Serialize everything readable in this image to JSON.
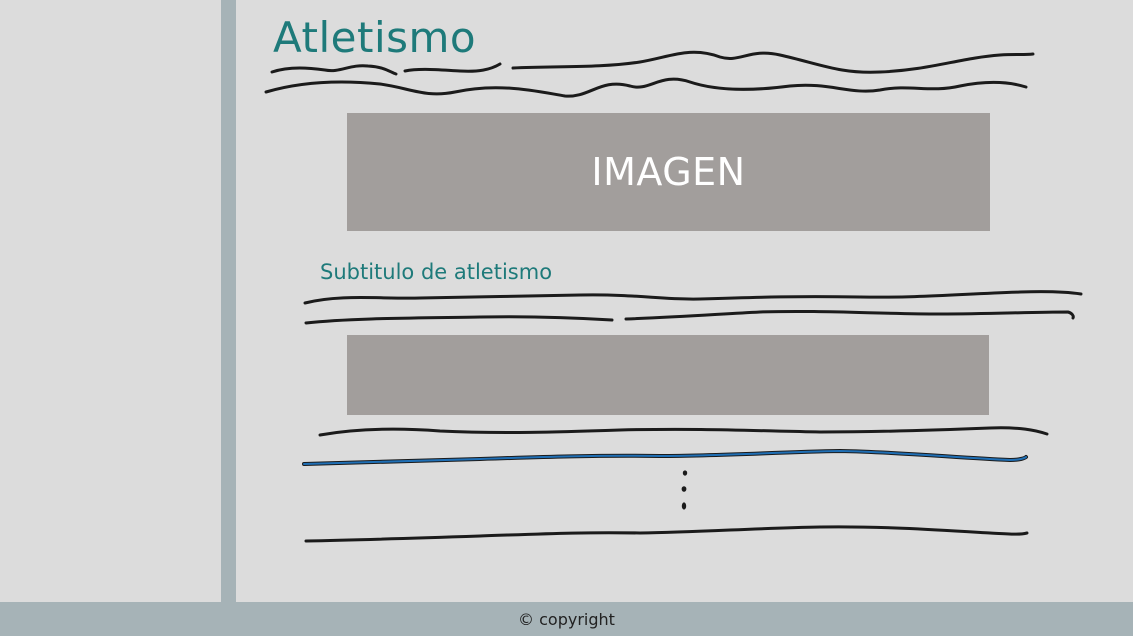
{
  "page": {
    "title": "Atletismo",
    "image_label": "IMAGEN",
    "subtitle": "Subtitulo de atletismo"
  },
  "footer": {
    "text": "© copyright"
  },
  "colors": {
    "accent": "#1e7a7a",
    "divider": "#a6b3b7",
    "placeholder": "#a29e9c",
    "background": "#dcdcdc",
    "highlight_line": "#1f6fb5"
  }
}
